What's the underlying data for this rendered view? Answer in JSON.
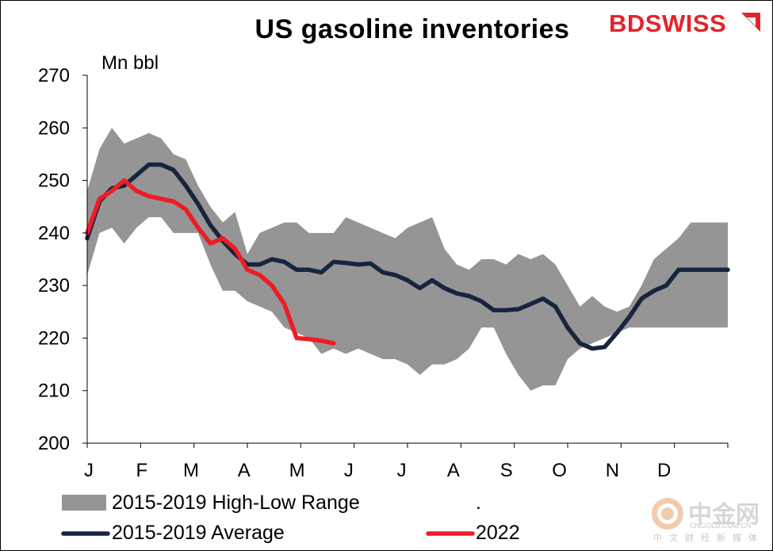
{
  "title": "US gasoline inventories",
  "logo": {
    "part1": "BD",
    "part2": "SWISS"
  },
  "unit_label": "Mn bbl",
  "watermark": {
    "main": "中金网",
    "sub": "CNGOLD.COM.CN",
    "cn": "中文财经新媒体"
  },
  "legend": {
    "range_label": "2015-2019 High-Low Range",
    "dot": ".",
    "average_label": "2015-2019 Average",
    "year_label": "2022"
  },
  "colors": {
    "range": "#959595",
    "average": "#17253f",
    "current": "#ee1c25",
    "brand": "#e3232b"
  },
  "chart_data": {
    "type": "area",
    "title": "US gasoline inventories",
    "ylabel": "Mn bbl",
    "ylim": [
      200,
      270
    ],
    "yticks": [
      200,
      210,
      220,
      230,
      240,
      250,
      260,
      270
    ],
    "xlim": [
      1,
      53
    ],
    "xtick_labels": [
      "J",
      "F",
      "M",
      "A",
      "M",
      "J",
      "J",
      "A",
      "S",
      "O",
      "N",
      "D"
    ],
    "xtick_weeks": [
      1,
      5.3,
      9.3,
      13.6,
      17.9,
      22.1,
      26.4,
      30.6,
      34.9,
      39.2,
      43.5,
      47.7
    ],
    "grid": false,
    "legend_position": "bottom",
    "series": [
      {
        "name": "2015-2019 High-Low Range",
        "type": "band",
        "x": [
          1,
          2,
          3,
          4,
          5,
          6,
          7,
          8,
          9,
          10,
          11,
          12,
          13,
          14,
          15,
          16,
          17,
          18,
          19,
          20,
          21,
          22,
          23,
          24,
          25,
          26,
          27,
          28,
          29,
          30,
          31,
          32,
          33,
          34,
          35,
          36,
          37,
          38,
          39,
          40,
          41,
          42,
          43,
          44,
          45,
          46,
          47,
          48,
          49,
          50,
          51,
          52,
          53
        ],
        "high": [
          248,
          256,
          260,
          257,
          258,
          259,
          258,
          255,
          254,
          249,
          245,
          242,
          244,
          236,
          240,
          241,
          242,
          242,
          240,
          240,
          240,
          243,
          242,
          241,
          240,
          239,
          241,
          242,
          243,
          237,
          234,
          233,
          235,
          235,
          234,
          236,
          235,
          236,
          234,
          230,
          226,
          228,
          226,
          225,
          226,
          230,
          235,
          237,
          239,
          242,
          242,
          242,
          242
        ],
        "low": [
          232,
          240,
          241,
          238,
          241,
          243,
          243,
          240,
          240,
          240,
          234,
          229,
          229,
          227,
          226,
          225,
          222,
          221,
          220,
          217,
          218,
          217,
          218,
          217,
          216,
          216,
          215,
          213,
          215,
          215,
          216,
          218,
          222,
          222,
          217,
          213,
          210,
          211,
          211,
          216,
          218,
          219,
          220,
          221,
          222,
          222,
          222,
          222,
          222,
          222,
          222,
          222,
          222
        ]
      },
      {
        "name": "2015-2019 Average",
        "type": "line",
        "x": [
          1,
          2,
          3,
          4,
          5,
          6,
          7,
          8,
          9,
          10,
          11,
          12,
          13,
          14,
          15,
          16,
          17,
          18,
          19,
          20,
          21,
          22,
          23,
          24,
          25,
          26,
          27,
          28,
          29,
          30,
          31,
          32,
          33,
          34,
          35,
          36,
          37,
          38,
          39,
          40,
          41,
          42,
          43,
          44,
          45,
          46,
          47,
          48,
          49,
          50,
          51,
          52,
          53
        ],
        "values": [
          239,
          246,
          248.5,
          249,
          251,
          253,
          253,
          252,
          249,
          245.5,
          241.5,
          238.5,
          236,
          234,
          234,
          235,
          234.5,
          233,
          233,
          232.5,
          234.5,
          234.3,
          234,
          234.2,
          232.5,
          232,
          231,
          229.5,
          231,
          229.5,
          228.5,
          228,
          227,
          225.3,
          225.3,
          225.5,
          226.5,
          227.5,
          226,
          222,
          219,
          218,
          218.3,
          221,
          224,
          227.5,
          229,
          230,
          233,
          233,
          233,
          233,
          233
        ]
      },
      {
        "name": "2022",
        "type": "line",
        "x": [
          1,
          2,
          3,
          4,
          5,
          6,
          7,
          8,
          9,
          10,
          11,
          12,
          13,
          14,
          15,
          16,
          17,
          18,
          19,
          20,
          21
        ],
        "values": [
          240,
          246.5,
          248,
          250,
          248,
          247,
          246.5,
          246,
          244.5,
          241,
          238,
          239,
          237,
          233,
          232,
          230,
          226.5,
          220,
          219.8,
          219.5,
          219
        ]
      }
    ]
  }
}
